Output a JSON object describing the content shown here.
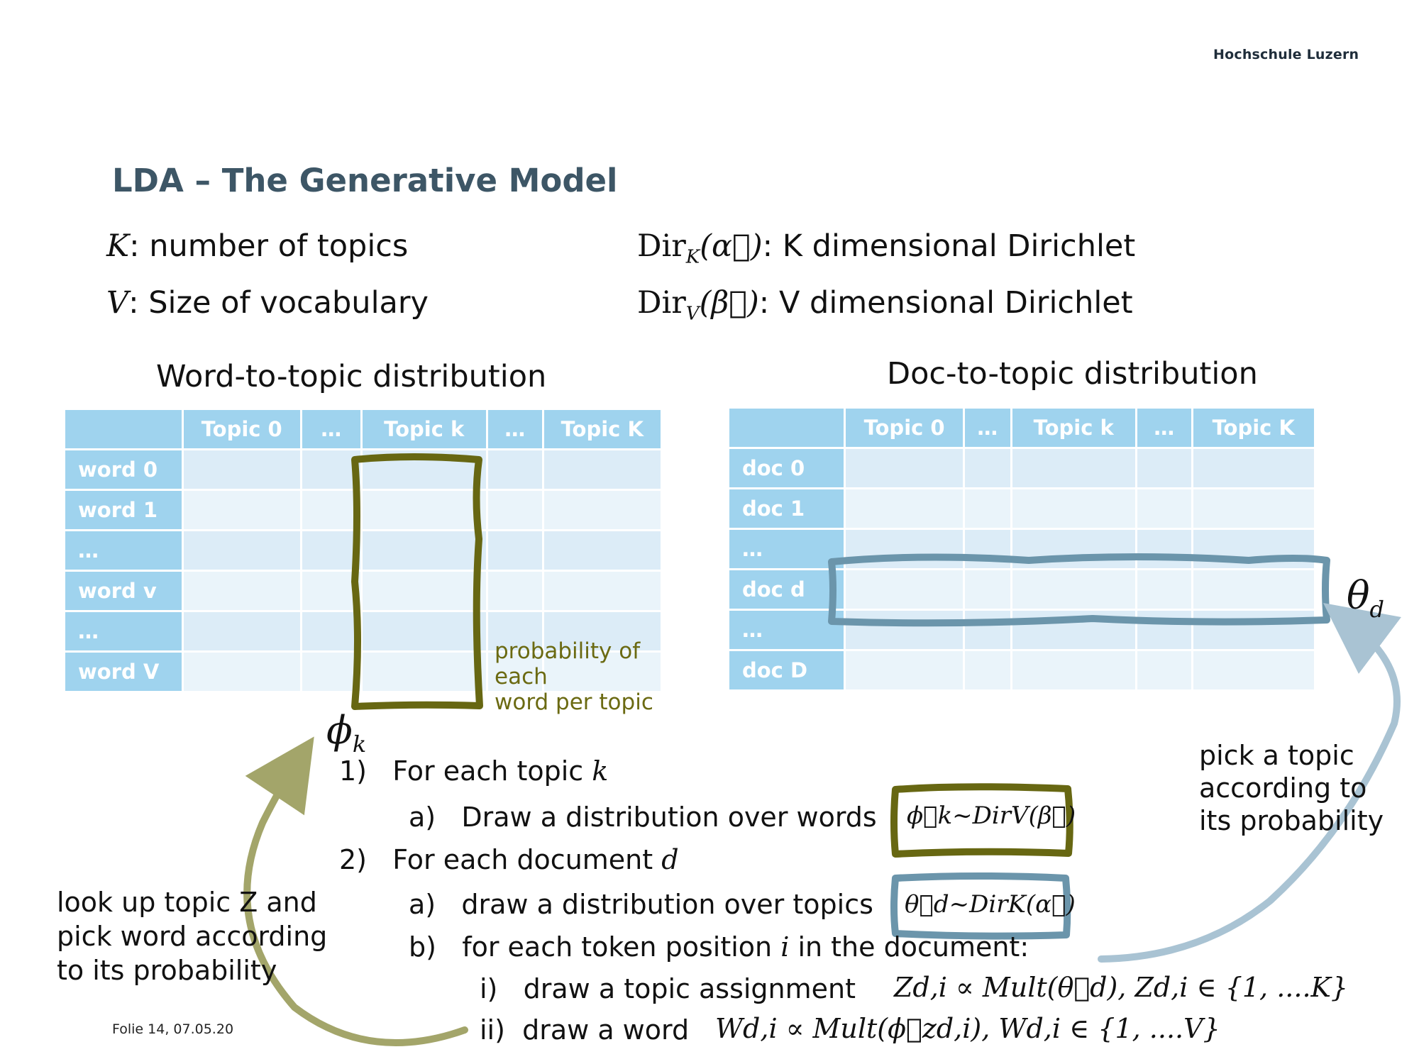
{
  "header": {
    "brand": "Hochschule Luzern"
  },
  "slide": {
    "title": "LDA – The Generative Model",
    "definitions": {
      "k_symbol": "K",
      "k_text": ": number of topics",
      "v_symbol": "V",
      "v_text": ": Size of vocabulary",
      "dir_k_func": "Dir",
      "dir_k_sub": "K",
      "dir_k_arg": "(α⃗)",
      "dir_k_text": ": K dimensional Dirichlet",
      "dir_v_func": "Dir",
      "dir_v_sub": "V",
      "dir_v_arg": "(β⃗)",
      "dir_v_text": ": V dimensional Dirichlet"
    },
    "word_table": {
      "title": "Word-to-topic distribution",
      "columns": [
        "Topic 0",
        "…",
        "Topic k",
        "…",
        "Topic K"
      ],
      "rows": [
        "word 0",
        "word 1",
        "…",
        "word v",
        "…",
        "word V"
      ],
      "annotation": [
        "probability of",
        "each",
        "word per topic"
      ],
      "phi_label": "ϕ",
      "phi_sub": "k"
    },
    "doc_table": {
      "title": "Doc-to-topic distribution",
      "columns": [
        "Topic 0",
        "…",
        "Topic k",
        "…",
        "Topic K"
      ],
      "rows": [
        "doc 0",
        "doc 1",
        "…",
        "doc d",
        "…",
        "doc D"
      ],
      "theta_label": "θ",
      "theta_sub": "d"
    },
    "steps": {
      "s1_num": "1)",
      "s1_text": "For each topic ",
      "s1_var": "k",
      "s1a_num": "a)",
      "s1a_text": "Draw a distribution over words",
      "s1a_formula": "ϕ⃗k~DirV(β⃗)",
      "s2_num": "2)",
      "s2_text": "For each document ",
      "s2_var": "d",
      "s2a_num": "a)",
      "s2a_text": "draw a distribution over topics",
      "s2a_formula": "θ⃗d~DirK(α⃗)",
      "s2b_num": "b)",
      "s2b_text1": "for each token position ",
      "s2b_var": "i",
      "s2b_text2": " in the document:",
      "s2bi_num": "i)",
      "s2bi_text": "draw a topic assignment",
      "s2bi_formula": "Zd,i ∝ Mult(θ⃗d), Zd,i ∈ {1, ....K}",
      "s2bii_num": "ii)",
      "s2bii_text": "draw a word",
      "s2bii_formula": "Wd,i ∝ Mult(ϕ⃗zd,i), Wd,i ∈ {1, ....V}"
    },
    "side_notes": {
      "left": [
        "look up topic Z and",
        "pick word according",
        "to its probability"
      ],
      "right": [
        "pick a topic",
        "according to",
        "its probability"
      ]
    },
    "footer": "Folie  14, 07.05.20"
  },
  "colors": {
    "title": "#3d5666",
    "table_header": "#9fd3ee",
    "cell": "#dcecf7",
    "olive_box": "#676712",
    "teal_box": "#6b95ab",
    "olive_arrow": "#a3a56a",
    "blue_arrow": "#a9c3d3"
  }
}
